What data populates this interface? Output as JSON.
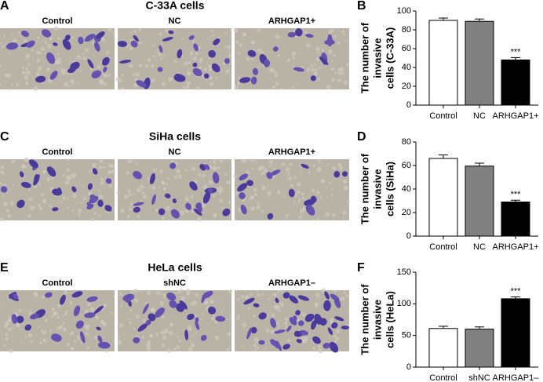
{
  "panels": [
    {
      "letter": "A",
      "title": "C-33A cells",
      "labels": [
        "Control",
        "NC",
        "ARHGAP1+"
      ]
    },
    {
      "letter": "C",
      "title": "SiHa cells",
      "labels": [
        "Control",
        "NC",
        "ARHGAP1+"
      ]
    },
    {
      "letter": "E",
      "title": "HeLa cells",
      "labels": [
        "Control",
        "shNC",
        "ARHGAP1–"
      ]
    }
  ],
  "chart_data": [
    {
      "type": "bar",
      "letter": "B",
      "ylabel": [
        "The number of",
        "invasive",
        "cells (C-33A)"
      ],
      "categories": [
        "Control",
        "NC",
        "ARHGAP1+"
      ],
      "values": [
        90,
        89,
        48
      ],
      "errors": [
        2.5,
        2.5,
        2.5
      ],
      "value_labels": [
        null,
        null,
        "***"
      ],
      "colors": [
        "#ffffff",
        "#808080",
        "#000000"
      ],
      "ylim": [
        0,
        100
      ],
      "yticks": [
        0,
        20,
        40,
        60,
        80,
        100
      ]
    },
    {
      "type": "bar",
      "letter": "D",
      "ylabel": [
        "The number of",
        "invasive",
        "cells (SiHa)"
      ],
      "categories": [
        "Control",
        "NC",
        "ARHGAP1+"
      ],
      "values": [
        66,
        59.5,
        29
      ],
      "errors": [
        3,
        2.5,
        1.5
      ],
      "value_labels": [
        null,
        null,
        "***"
      ],
      "colors": [
        "#ffffff",
        "#808080",
        "#000000"
      ],
      "ylim": [
        0,
        80
      ],
      "yticks": [
        0,
        20,
        40,
        60,
        80
      ]
    },
    {
      "type": "bar",
      "letter": "F",
      "ylabel": [
        "The number of",
        "invasive",
        "cells (HeLa)"
      ],
      "categories": [
        "Control",
        "shNC",
        "ARHGAP1–"
      ],
      "values": [
        61,
        60,
        108
      ],
      "errors": [
        3.5,
        3.5,
        3
      ],
      "value_labels": [
        null,
        null,
        "***"
      ],
      "colors": [
        "#ffffff",
        "#808080",
        "#000000"
      ],
      "ylim": [
        0,
        150
      ],
      "yticks": [
        0,
        50,
        100,
        150
      ]
    }
  ]
}
